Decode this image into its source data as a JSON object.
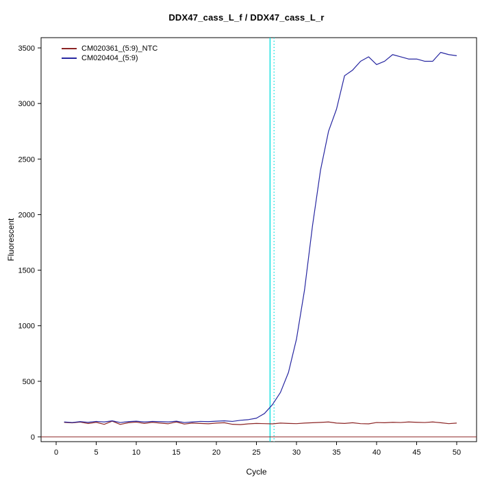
{
  "title": "DDX47_cass_L_f / DDX47_cass_L_r",
  "chart_data": {
    "type": "line",
    "title": "DDX47_cass_L_f / DDX47_cass_L_r",
    "xlabel": "Cycle",
    "ylabel": "Fluorescent",
    "xlim": [
      0,
      50
    ],
    "ylim": [
      0,
      3500
    ],
    "xticks": [
      0,
      5,
      10,
      15,
      20,
      25,
      30,
      35,
      40,
      45,
      50
    ],
    "yticks": [
      0,
      500,
      1000,
      1500,
      2000,
      2500,
      3000,
      3500
    ],
    "grid": false,
    "legend_position": "top-left",
    "ct_color": "#00dede",
    "ct_lines": [
      {
        "x": 26.7,
        "style": "solid"
      },
      {
        "x": 27.2,
        "style": "dotted"
      }
    ],
    "baseline": {
      "y": 0,
      "color": "#8b2323"
    },
    "x": [
      1,
      2,
      3,
      4,
      5,
      6,
      7,
      8,
      9,
      10,
      11,
      12,
      13,
      14,
      15,
      16,
      17,
      18,
      19,
      20,
      21,
      22,
      23,
      24,
      25,
      26,
      27,
      28,
      29,
      30,
      31,
      32,
      33,
      34,
      35,
      36,
      37,
      38,
      39,
      40,
      41,
      42,
      43,
      44,
      45,
      46,
      47,
      48,
      49,
      50
    ],
    "series": [
      {
        "name": "CM020361_(5:9)_NTC",
        "color": "#8b2323",
        "values": [
          130,
          126,
          133,
          120,
          131,
          113,
          141,
          112,
          127,
          133,
          121,
          131,
          124,
          118,
          134,
          115,
          124,
          121,
          118,
          124,
          127,
          113,
          110,
          117,
          121,
          119,
          117,
          124,
          121,
          119,
          124,
          127,
          130,
          134,
          124,
          121,
          127,
          119,
          117,
          129,
          127,
          131,
          129,
          134,
          131,
          129,
          134,
          127,
          119,
          124
        ]
      },
      {
        "name": "CM020404_(5:9)",
        "color": "#2525a0",
        "values": [
          134,
          129,
          137,
          131,
          139,
          134,
          144,
          129,
          137,
          141,
          134,
          139,
          137,
          134,
          141,
          129,
          134,
          139,
          137,
          141,
          144,
          139,
          149,
          155,
          168,
          210,
          290,
          400,
          580,
          880,
          1320,
          1900,
          2400,
          2750,
          2950,
          3250,
          3300,
          3380,
          3420,
          3350,
          3380,
          3440,
          3420,
          3400,
          3400,
          3380,
          3380,
          3460,
          3440,
          3430
        ]
      }
    ]
  }
}
